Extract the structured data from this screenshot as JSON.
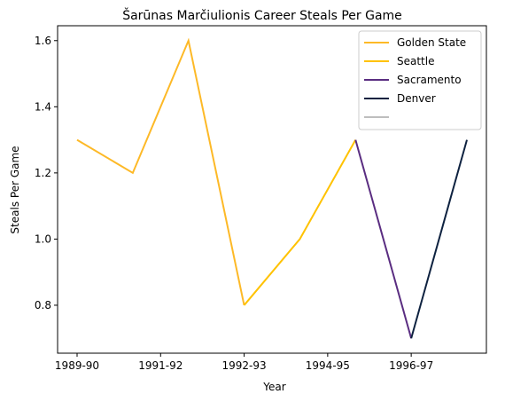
{
  "chart_data": {
    "type": "line",
    "title": "Šarūnas Marčiulionis Career Steals Per Game",
    "xlabel": "Year",
    "ylabel": "Steals Per Game",
    "x_tick_labels": [
      "1989-90",
      "1991-92",
      "1992-93",
      "1994-95",
      "1996-97"
    ],
    "x_tick_positions": [
      0,
      1.5,
      3,
      4.5,
      6
    ],
    "y_ticks": [
      0.8,
      1.0,
      1.2,
      1.4,
      1.6
    ],
    "y_tick_labels": [
      "0.8",
      "1.0",
      "1.2",
      "1.4",
      "1.6"
    ],
    "xlim": [
      -0.35,
      7.35
    ],
    "ylim": [
      0.655,
      1.645
    ],
    "grid": false,
    "legend_position": "top-right",
    "series": [
      {
        "name": "Golden State",
        "color": "#FDB927",
        "x": [
          0,
          1,
          2,
          3
        ],
        "values": [
          1.3,
          1.2,
          1.6,
          0.8
        ]
      },
      {
        "name": "Seattle",
        "color": "#FFC200",
        "x": [
          3,
          4,
          5
        ],
        "values": [
          0.8,
          1.0,
          1.3
        ]
      },
      {
        "name": "Sacramento",
        "color": "#5A2D81",
        "x": [
          5,
          6
        ],
        "values": [
          1.3,
          0.7
        ]
      },
      {
        "name": "Denver",
        "color": "#0E2240",
        "x": [
          6,
          7
        ],
        "values": [
          0.7,
          1.3
        ]
      },
      {
        "name": "",
        "color": "#BEBEBE",
        "x": [],
        "values": []
      }
    ]
  }
}
